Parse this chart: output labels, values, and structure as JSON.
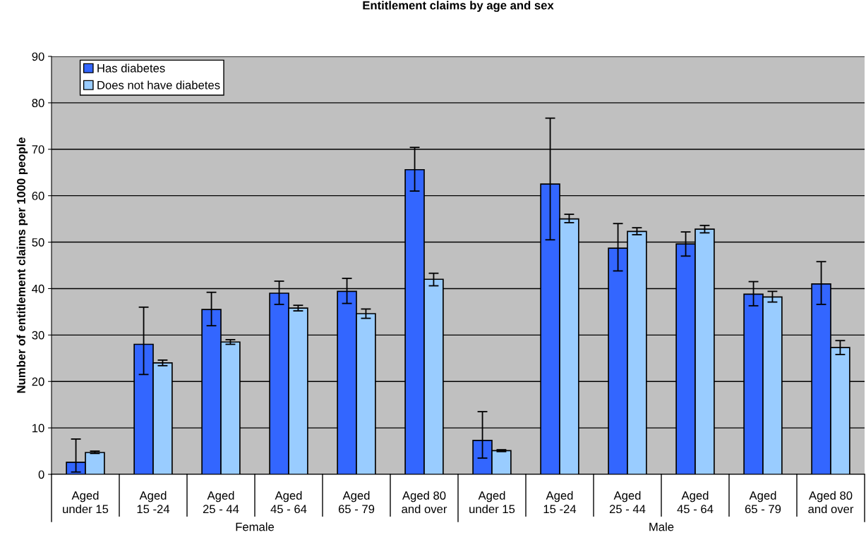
{
  "chart_data": {
    "type": "bar",
    "title": "Entitlement claims by age and sex",
    "ylabel": "Number of entitlement claims per 1000 people",
    "categories": [
      "Aged\nunder 15",
      "Aged\n15 -24",
      "Aged\n25 - 44",
      "Aged\n45 - 64",
      "Aged\n65 - 79",
      "Aged 80\nand over",
      "Aged\nunder 15",
      "Aged\n15 -24",
      "Aged\n25 - 44",
      "Aged\n45 - 64",
      "Aged\n65 - 79",
      "Aged 80\nand over"
    ],
    "series": [
      {
        "name": "Has diabetes",
        "color": "#3366ff",
        "values": [
          2.6,
          28,
          35.5,
          39,
          39.4,
          65.6,
          7.3,
          62.5,
          48.7,
          49.6,
          38.8,
          41
        ],
        "errors": [
          [
            0.5,
            7.6
          ],
          [
            21.5,
            36
          ],
          [
            32,
            39.2
          ],
          [
            36.6,
            41.6
          ],
          [
            36.8,
            42.2
          ],
          [
            61,
            70.4
          ],
          [
            3.5,
            13.5
          ],
          [
            50.5,
            76.7
          ],
          [
            43.8,
            54
          ],
          [
            47,
            52.2
          ],
          [
            36.3,
            41.5
          ],
          [
            36.6,
            45.8
          ]
        ]
      },
      {
        "name": "Does not have diabetes",
        "color": "#99ccff",
        "values": [
          4.7,
          24,
          28.5,
          35.8,
          34.6,
          42,
          5.1,
          55,
          52.3,
          52.8,
          38.2,
          27.3
        ],
        "errors": [
          [
            4.5,
            5.0
          ],
          [
            23.4,
            24.6
          ],
          [
            28,
            29
          ],
          [
            35.2,
            36.4
          ],
          [
            33.6,
            35.6
          ],
          [
            40.6,
            43.3
          ],
          [
            4.9,
            5.3
          ],
          [
            54.2,
            56
          ],
          [
            51.6,
            53.1
          ],
          [
            52,
            53.6
          ],
          [
            37.1,
            39.4
          ],
          [
            25.8,
            28.8
          ]
        ]
      }
    ],
    "annotations": [
      "Female",
      "Male"
    ],
    "ylim": [
      0,
      90
    ],
    "yticks": [
      0,
      10,
      20,
      30,
      40,
      50,
      60,
      70,
      80,
      90
    ],
    "grid": "y",
    "legend": "top left"
  }
}
